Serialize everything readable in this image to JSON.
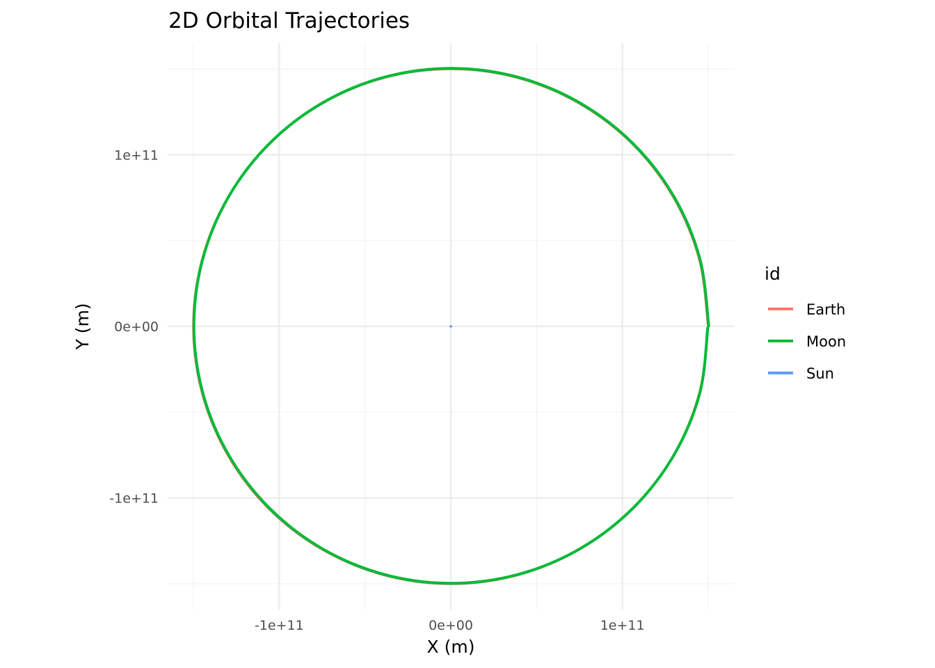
{
  "chart_data": {
    "type": "line",
    "title": "2D Orbital Trajectories",
    "xlabel": "X (m)",
    "ylabel": "Y (m)",
    "xlim": [
      -165000000000.0,
      165000000000.0
    ],
    "ylim": [
      -165000000000.0,
      165000000000.0
    ],
    "aspect": "equal",
    "grid": true,
    "x_ticks": [
      {
        "value": -100000000000.0,
        "label": "-1e+11"
      },
      {
        "value": 0,
        "label": "0e+00"
      },
      {
        "value": 100000000000.0,
        "label": "1e+11"
      }
    ],
    "y_ticks": [
      {
        "value": 100000000000.0,
        "label": "1e+11"
      },
      {
        "value": 0,
        "label": "0e+00"
      },
      {
        "value": -100000000000.0,
        "label": "-1e+11"
      }
    ],
    "minor_breaks": [
      -150000000000.0,
      -50000000000.0,
      50000000000.0,
      150000000000.0
    ],
    "legend": {
      "title": "id",
      "position": "right"
    },
    "series": [
      {
        "name": "Earth",
        "color": "#F8766D",
        "x": [
          150000000000.0,
          144900000000.0,
          129900000000.0,
          106100000000.0,
          75000000000.0,
          38800000000.0,
          0,
          -38800000000.0,
          -75000000000.0,
          -106100000000.0,
          -129900000000.0,
          -144900000000.0,
          -150000000000.0,
          -144900000000.0,
          -129900000000.0,
          -106100000000.0,
          -75000000000.0,
          -38800000000.0,
          0,
          38800000000.0,
          75000000000.0,
          106100000000.0,
          129900000000.0,
          144900000000.0,
          150000000000.0
        ],
        "y": [
          0,
          38800000000.0,
          75000000000.0,
          106100000000.0,
          129900000000.0,
          144900000000.0,
          150000000000.0,
          144900000000.0,
          129900000000.0,
          106100000000.0,
          75000000000.0,
          38800000000.0,
          0,
          -38800000000.0,
          -75000000000.0,
          -106100000000.0,
          -129900000000.0,
          -144900000000.0,
          -150000000000.0,
          -144900000000.0,
          -129900000000.0,
          -106100000000.0,
          -75000000000.0,
          -38800000000.0,
          0
        ]
      },
      {
        "name": "Moon",
        "color": "#00BA38",
        "x": [
          150300000000.0,
          145200000000.0,
          130200000000.0,
          106300000000.0,
          75200000000.0,
          39000000000.0,
          200000000.0,
          -38600000000.0,
          -74800000000.0,
          -105800000000.0,
          -129600000000.0,
          -144600000000.0,
          -149700000000.0,
          -144600000000.0,
          -129600000000.0,
          -105800000000.0,
          -74800000000.0,
          -38600000000.0,
          200000000.0,
          39000000000.0,
          75200000000.0,
          106300000000.0,
          130200000000.0,
          145200000000.0,
          149700000000.0
        ],
        "y": [
          300000000.0,
          39100000000.0,
          75300000000.0,
          106400000000.0,
          130200000000.0,
          145200000000.0,
          150300000000.0,
          145200000000.0,
          130200000000.0,
          106400000000.0,
          75300000000.0,
          39100000000.0,
          300000000.0,
          -38500000000.0,
          -74700000000.0,
          -105800000000.0,
          -129600000000.0,
          -144600000000.0,
          -149700000000.0,
          -144600000000.0,
          -129600000000.0,
          -105800000000.0,
          -74700000000.0,
          -38500000000.0,
          -1000000000.0
        ]
      },
      {
        "name": "Sun",
        "color": "#619CFF",
        "x": [
          0,
          100000000.0
        ],
        "y": [
          0,
          0
        ]
      }
    ]
  }
}
